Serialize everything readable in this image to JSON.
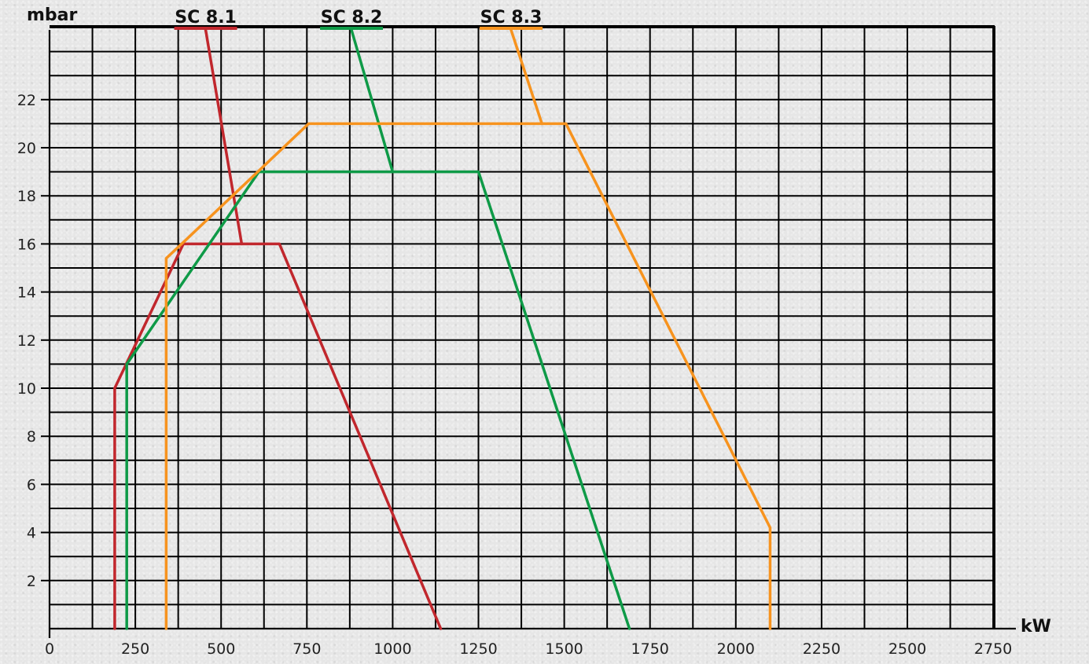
{
  "chart_data": {
    "type": "line",
    "title": "",
    "xlabel": "kW",
    "ylabel": "mbar",
    "xlim": [
      0,
      2750
    ],
    "ylim": [
      0,
      24
    ],
    "x_ticks": [
      0,
      250,
      500,
      750,
      1000,
      1250,
      1500,
      1750,
      2000,
      2250,
      2500,
      2750
    ],
    "y_ticks": [
      2,
      4,
      6,
      8,
      10,
      12,
      14,
      16,
      18,
      20,
      22
    ],
    "grid": true,
    "legend": "top",
    "series": [
      {
        "name": "SC 8.1",
        "color": "#c1272d",
        "points": [
          [
            190,
            0
          ],
          [
            190,
            10
          ],
          [
            390,
            16
          ],
          [
            670,
            16
          ],
          [
            1140,
            0
          ]
        ],
        "extra_segments": [
          [
            [
              455,
              24.9
            ],
            [
              560,
              16
            ]
          ]
        ]
      },
      {
        "name": "SC 8.2",
        "color": "#0e9a47",
        "points": [
          [
            225,
            0
          ],
          [
            225,
            11
          ],
          [
            610,
            19
          ],
          [
            1250,
            19
          ],
          [
            1690,
            0
          ]
        ],
        "extra_segments": [
          [
            [
              880,
              24.9
            ],
            [
              1000,
              19
            ]
          ]
        ]
      },
      {
        "name": "SC 8.3",
        "color": "#f7931e",
        "points": [
          [
            340,
            0
          ],
          [
            340,
            15.4
          ],
          [
            385,
            16
          ],
          [
            755,
            21
          ],
          [
            1505,
            21
          ],
          [
            2100,
            4.2
          ],
          [
            2100,
            0
          ]
        ],
        "extra_segments": [
          [
            [
              1345,
              24.9
            ],
            [
              1435,
              21
            ]
          ]
        ]
      }
    ]
  }
}
